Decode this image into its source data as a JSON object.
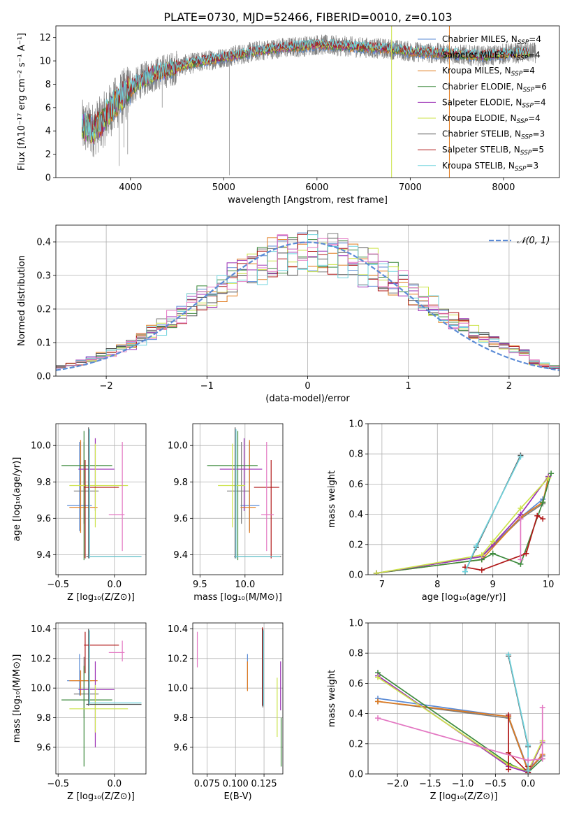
{
  "figure_title": "PLATE=0730, MJD=52466, FIBERID=0010, z=0.103",
  "colors": {
    "Chabrier MILES": "#5b8bd6",
    "Salpeter MILES": "#7d7d7d",
    "Kroupa MILES": "#e07b1f",
    "Chabrier ELODIE": "#3d8a3d",
    "Salpeter ELODIE": "#9b30b5",
    "Kroupa ELODIE": "#cce34a",
    "Chabrier STELIB": "#555555",
    "Salpeter STELIB": "#b01818",
    "Kroupa STELIB": "#6fd3dd",
    "Pink": "#e377c2",
    "Gauss": "#5b8bd6"
  },
  "legend": [
    {
      "label": "Chabrier MILES, N",
      "sub": "SSP",
      "tail": "=4",
      "key": "Chabrier MILES"
    },
    {
      "label": "Salpeter MILES, N",
      "sub": "SSP",
      "tail": "=4",
      "key": "Salpeter MILES"
    },
    {
      "label": "Kroupa MILES, N",
      "sub": "SSP",
      "tail": "=4",
      "key": "Kroupa MILES"
    },
    {
      "label": "Chabrier ELODIE, N",
      "sub": "SSP",
      "tail": "=6",
      "key": "Chabrier ELODIE"
    },
    {
      "label": "Salpeter ELODIE, N",
      "sub": "SSP",
      "tail": "=4",
      "key": "Salpeter ELODIE"
    },
    {
      "label": "Kroupa ELODIE, N",
      "sub": "SSP",
      "tail": "=4",
      "key": "Kroupa ELODIE"
    },
    {
      "label": "Chabrier STELIB, N",
      "sub": "SSP",
      "tail": "=3",
      "key": "Chabrier STELIB"
    },
    {
      "label": "Salpeter STELIB, N",
      "sub": "SSP",
      "tail": "=5",
      "key": "Salpeter STELIB"
    },
    {
      "label": "Kroupa STELIB, N",
      "sub": "SSP",
      "tail": "=3",
      "key": "Kroupa STELIB"
    }
  ],
  "chart_data": [
    {
      "id": "spectrum",
      "type": "line",
      "xlabel": "wavelength [Angstrom, rest frame]",
      "ylabel": "Flux [fλ10⁻¹⁷ erg cm⁻² s⁻¹ A⁻¹]",
      "xlim": [
        3200,
        8600
      ],
      "ylim": [
        0,
        13
      ],
      "xticks": [
        4000,
        5000,
        6000,
        7000,
        8000
      ],
      "yticks": [
        0,
        2,
        4,
        6,
        8,
        10,
        12
      ],
      "continuum": {
        "x": [
          3480,
          3600,
          3700,
          3800,
          3900,
          4000,
          4100,
          4200,
          4400,
          4600,
          4800,
          5000,
          5200,
          5400,
          5600,
          5800,
          6000,
          6200,
          6400,
          6600,
          6800,
          7000,
          7200,
          7400,
          7600,
          7800,
          8000,
          8200
        ],
        "y": [
          4.3,
          4.1,
          4.8,
          6.0,
          6.8,
          7.6,
          8.2,
          8.7,
          9.2,
          9.7,
          10.0,
          10.3,
          10.6,
          10.9,
          11.1,
          11.2,
          11.4,
          11.3,
          11.2,
          11.1,
          11.0,
          10.8,
          10.7,
          10.6,
          10.5,
          10.4,
          10.6,
          10.7
        ]
      },
      "xrange_data": [
        3480,
        8350
      ],
      "vertical_lines": [
        {
          "x": 6800,
          "color": "#cce34a"
        },
        {
          "x": 7420,
          "color": "#e07b1f"
        }
      ]
    },
    {
      "id": "residuals",
      "type": "line",
      "xlabel": "(data-model)/error",
      "ylabel": "Normed distribution",
      "xlim": [
        -2.5,
        2.5
      ],
      "ylim": [
        0,
        0.45
      ],
      "xticks": [
        -2,
        -1,
        0,
        1,
        2
      ],
      "yticks": [
        0.0,
        0.1,
        0.2,
        0.3,
        0.4
      ],
      "gauss_label": "𝒩(0, 1)",
      "bin_width": 0.1
    },
    {
      "id": "age_vs_Z",
      "type": "scatter",
      "xlabel": "Z [log₁₀(Z/Z⊙)]",
      "ylabel": "age  [log₁₀(age/yr)]",
      "xlim": [
        -0.52,
        0.28
      ],
      "ylim": [
        9.29,
        10.12
      ],
      "xticks": [
        -0.5,
        0.0
      ],
      "yticks": [
        9.4,
        9.6,
        9.8,
        10.0
      ],
      "points": [
        {
          "c": "Chabrier MILES",
          "x": -0.31,
          "y": 9.67,
          "xe": [
            -0.42,
            -0.2
          ],
          "ye": [
            9.53,
            10.02
          ]
        },
        {
          "c": "Salpeter MILES",
          "x": -0.27,
          "y": 9.75,
          "xe": [
            -0.36,
            -0.14
          ],
          "ye": [
            9.57,
            10.02
          ]
        },
        {
          "c": "Kroupa MILES",
          "x": -0.3,
          "y": 9.66,
          "xe": [
            -0.4,
            -0.15
          ],
          "ye": [
            9.52,
            10.03
          ]
        },
        {
          "c": "Chabrier ELODIE",
          "x": -0.27,
          "y": 9.89,
          "xe": [
            -0.47,
            -0.02
          ],
          "ye": [
            9.37,
            10.08
          ]
        },
        {
          "c": "Salpeter ELODIE",
          "x": -0.17,
          "y": 9.87,
          "xe": [
            -0.32,
            0.0
          ],
          "ye": [
            9.64,
            10.04
          ]
        },
        {
          "c": "Kroupa ELODIE",
          "x": -0.17,
          "y": 9.78,
          "xe": [
            -0.4,
            0.12
          ],
          "ye": [
            9.55,
            10.01
          ]
        },
        {
          "c": "Chabrier STELIB",
          "x": -0.23,
          "y": 9.39,
          "xe": [
            -0.25,
            0.24
          ],
          "ye": [
            9.38,
            10.1
          ]
        },
        {
          "c": "Salpeter STELIB",
          "x": -0.26,
          "y": 9.77,
          "xe": [
            -0.27,
            0.04
          ],
          "ye": [
            9.38,
            9.92
          ]
        },
        {
          "c": "Kroupa STELIB",
          "x": -0.22,
          "y": 9.39,
          "xe": [
            -0.23,
            0.24
          ],
          "ye": [
            9.38,
            10.09
          ]
        },
        {
          "c": "Pink",
          "x": 0.07,
          "y": 9.62,
          "xe": [
            -0.05,
            0.09
          ],
          "ye": [
            9.42,
            10.02
          ]
        }
      ]
    },
    {
      "id": "age_vs_mass",
      "type": "scatter",
      "xlabel": "mass [log₁₀(M/M⊙)]",
      "ylabel": "",
      "xlim": [
        9.42,
        10.42
      ],
      "ylim": [
        9.29,
        10.12
      ],
      "xticks": [
        9.5,
        10.0
      ],
      "yticks": [
        9.4,
        9.6,
        9.8,
        10.0
      ],
      "points": [
        {
          "c": "Chabrier MILES",
          "x": 10.05,
          "y": 9.67,
          "xe": [
            9.95,
            10.16
          ],
          "ye": [
            9.53,
            10.02
          ]
        },
        {
          "c": "Salpeter MILES",
          "x": 9.96,
          "y": 9.75,
          "xe": [
            9.8,
            10.05
          ],
          "ye": [
            9.57,
            10.02
          ]
        },
        {
          "c": "Kroupa MILES",
          "x": 10.05,
          "y": 9.66,
          "xe": [
            9.95,
            10.12
          ],
          "ye": [
            9.52,
            10.03
          ]
        },
        {
          "c": "Chabrier ELODIE",
          "x": 9.92,
          "y": 9.89,
          "xe": [
            9.58,
            10.14
          ],
          "ye": [
            9.37,
            10.08
          ]
        },
        {
          "c": "Salpeter ELODIE",
          "x": 9.99,
          "y": 9.87,
          "xe": [
            9.72,
            10.19
          ],
          "ye": [
            9.64,
            10.04
          ]
        },
        {
          "c": "Kroupa ELODIE",
          "x": 9.86,
          "y": 9.78,
          "xe": [
            9.7,
            10.0
          ],
          "ye": [
            9.55,
            10.01
          ]
        },
        {
          "c": "Chabrier STELIB",
          "x": 9.89,
          "y": 9.39,
          "xe": [
            9.88,
            10.4
          ],
          "ye": [
            9.38,
            10.1
          ]
        },
        {
          "c": "Salpeter STELIB",
          "x": 10.29,
          "y": 9.77,
          "xe": [
            10.1,
            10.38
          ],
          "ye": [
            9.38,
            9.92
          ]
        },
        {
          "c": "Kroupa STELIB",
          "x": 9.9,
          "y": 9.39,
          "xe": [
            9.89,
            10.39
          ],
          "ye": [
            9.38,
            10.09
          ]
        },
        {
          "c": "Pink",
          "x": 10.24,
          "y": 9.62,
          "xe": [
            10.18,
            10.32
          ],
          "ye": [
            9.42,
            10.02
          ]
        }
      ]
    },
    {
      "id": "mw_vs_age",
      "type": "line",
      "xlabel": "age  [log₁₀(age/yr)]",
      "ylabel": "mass weight",
      "xlim": [
        6.75,
        10.2
      ],
      "ylim": [
        0,
        1.0
      ],
      "xticks": [
        7,
        8,
        9,
        10
      ],
      "yticks": [
        0.0,
        0.2,
        0.4,
        0.6,
        0.8,
        1.0
      ],
      "series": [
        {
          "c": "Chabrier MILES",
          "x": [
            6.9,
            8.8,
            9.5,
            9.9
          ],
          "y": [
            0.01,
            0.12,
            0.38,
            0.5
          ]
        },
        {
          "c": "Salpeter MILES",
          "x": [
            6.9,
            8.8,
            9.5,
            9.9,
            10.0
          ],
          "y": [
            0.01,
            0.12,
            0.37,
            0.47,
            0.65
          ]
        },
        {
          "c": "Kroupa MILES",
          "x": [
            6.9,
            8.8,
            9.5,
            9.9,
            10.0
          ],
          "y": [
            0.01,
            0.1,
            0.38,
            0.48,
            0.64
          ]
        },
        {
          "c": "Chabrier ELODIE",
          "x": [
            6.9,
            8.8,
            9.0,
            9.5,
            9.9,
            10.05
          ],
          "y": [
            0.01,
            0.1,
            0.14,
            0.07,
            0.48,
            0.67
          ]
        },
        {
          "c": "Salpeter ELODIE",
          "x": [
            6.9,
            8.8,
            9.0,
            9.5,
            10.0
          ],
          "y": [
            0.01,
            0.12,
            0.2,
            0.4,
            0.65
          ]
        },
        {
          "c": "Kroupa ELODIE",
          "x": [
            6.9,
            8.8,
            9.0,
            9.5,
            10.0
          ],
          "y": [
            0.01,
            0.13,
            0.22,
            0.44,
            0.64
          ]
        },
        {
          "c": "Chabrier STELIB",
          "x": [
            8.5,
            8.7,
            9.5
          ],
          "y": [
            0.02,
            0.18,
            0.79
          ]
        },
        {
          "c": "Salpeter STELIB",
          "x": [
            8.5,
            8.8,
            9.6,
            9.8,
            9.9
          ],
          "y": [
            0.05,
            0.03,
            0.14,
            0.39,
            0.37
          ]
        },
        {
          "c": "Kroupa STELIB",
          "x": [
            8.5,
            8.7,
            9.5
          ],
          "y": [
            0.02,
            0.19,
            0.78
          ]
        },
        {
          "c": "Pink",
          "x": [
            9.5,
            9.5
          ],
          "y": [
            0.1,
            0.37
          ]
        }
      ]
    },
    {
      "id": "mass_vs_Z",
      "type": "scatter",
      "xlabel": "Z [log₁₀(Z/Z⊙)]",
      "ylabel": "mass [log₁₀(M/M⊙)]",
      "xlim": [
        -0.52,
        0.28
      ],
      "ylim": [
        9.42,
        10.44
      ],
      "xticks": [
        -0.5,
        0.0
      ],
      "yticks": [
        9.6,
        9.8,
        10.0,
        10.2,
        10.4
      ],
      "points": [
        {
          "c": "Chabrier MILES",
          "x": -0.31,
          "y": 10.05,
          "xe": [
            -0.42,
            -0.2
          ],
          "ye": [
            9.95,
            10.23
          ]
        },
        {
          "c": "Salpeter MILES",
          "x": -0.27,
          "y": 9.96,
          "xe": [
            -0.36,
            -0.14
          ],
          "ye": [
            9.8,
            10.21
          ]
        },
        {
          "c": "Kroupa MILES",
          "x": -0.3,
          "y": 10.05,
          "xe": [
            -0.4,
            -0.15
          ],
          "ye": [
            9.95,
            10.12
          ]
        },
        {
          "c": "Chabrier ELODIE",
          "x": -0.27,
          "y": 9.92,
          "xe": [
            -0.47,
            -0.02
          ],
          "ye": [
            9.47,
            10.15
          ]
        },
        {
          "c": "Salpeter ELODIE",
          "x": -0.17,
          "y": 9.99,
          "xe": [
            -0.32,
            0.0
          ],
          "ye": [
            9.6,
            10.18
          ]
        },
        {
          "c": "Kroupa ELODIE",
          "x": -0.17,
          "y": 9.86,
          "xe": [
            -0.4,
            0.12
          ],
          "ye": [
            9.7,
            10.02
          ]
        },
        {
          "c": "Chabrier STELIB",
          "x": -0.23,
          "y": 9.89,
          "xe": [
            -0.25,
            0.24
          ],
          "ye": [
            9.88,
            10.4
          ]
        },
        {
          "c": "Salpeter STELIB",
          "x": -0.26,
          "y": 10.29,
          "xe": [
            -0.27,
            0.04
          ],
          "ye": [
            10.1,
            10.38
          ]
        },
        {
          "c": "Kroupa STELIB",
          "x": -0.22,
          "y": 9.9,
          "xe": [
            -0.23,
            0.24
          ],
          "ye": [
            9.89,
            10.39
          ]
        },
        {
          "c": "Pink",
          "x": 0.07,
          "y": 10.24,
          "xe": [
            -0.05,
            0.09
          ],
          "ye": [
            10.18,
            10.32
          ]
        }
      ]
    },
    {
      "id": "mass_vs_ebv",
      "type": "scatter",
      "xlabel": "E(B-V)",
      "ylabel": "",
      "xlim": [
        0.0625,
        0.1415
      ],
      "ylim": [
        9.42,
        10.44
      ],
      "xticks": [
        0.075,
        0.1,
        0.125
      ],
      "xticklabels": [
        "0.075",
        "0.100",
        "0.125"
      ],
      "yticks": [
        9.6,
        9.8,
        10.0,
        10.2,
        10.4
      ],
      "points": [
        {
          "c": "Pink",
          "x": 0.0665,
          "ye": [
            10.14,
            10.38
          ]
        },
        {
          "c": "Chabrier MILES",
          "x": 0.1105,
          "ye": [
            9.99,
            10.23
          ]
        },
        {
          "c": "Kroupa MILES",
          "x": 0.1105,
          "ye": [
            9.98,
            10.18
          ]
        },
        {
          "c": "Salpeter STELIB",
          "x": 0.1235,
          "ye": [
            9.88,
            10.41
          ]
        },
        {
          "c": "Chabrier STELIB",
          "x": 0.124,
          "ye": [
            9.87,
            10.4
          ]
        },
        {
          "c": "Kroupa STELIB",
          "x": 0.1245,
          "ye": [
            9.88,
            10.39
          ]
        },
        {
          "c": "Kroupa ELODIE",
          "x": 0.1365,
          "ye": [
            9.67,
            10.07
          ]
        },
        {
          "c": "Salpeter ELODIE",
          "x": 0.1395,
          "ye": [
            9.85,
            10.18
          ]
        },
        {
          "c": "Chabrier ELODIE",
          "x": 0.14,
          "ye": [
            9.47,
            9.8
          ]
        }
      ]
    },
    {
      "id": "mw_vs_Z",
      "type": "line",
      "xlabel": "Z [log₁₀(Z/Z⊙)]",
      "ylabel": "mass weight",
      "xlim": [
        -2.45,
        0.48
      ],
      "ylim": [
        0,
        1.0
      ],
      "xticks": [
        -2.0,
        -1.5,
        -1.0,
        -0.5,
        0.0
      ],
      "xticklabels": [
        "−2.0",
        "−1.5",
        "−1.0",
        "−0.5",
        "0.0"
      ],
      "yticks": [
        0.0,
        0.2,
        0.4,
        0.6,
        0.8,
        1.0
      ],
      "series": [
        {
          "c": "Chabrier MILES",
          "x": [
            -2.3,
            -0.3,
            0.0,
            0.22
          ],
          "y": [
            0.5,
            0.38,
            0.03,
            0.12
          ]
        },
        {
          "c": "Salpeter MILES",
          "x": [
            -2.3,
            -0.3,
            0.0,
            0.22
          ],
          "y": [
            0.48,
            0.37,
            0.02,
            0.12
          ]
        },
        {
          "c": "Kroupa MILES",
          "x": [
            -2.3,
            -0.3,
            0.0,
            0.22
          ],
          "y": [
            0.48,
            0.38,
            0.02,
            0.13
          ]
        },
        {
          "c": "Chabrier ELODIE",
          "x": [
            -2.3,
            -0.3,
            0.0,
            0.22
          ],
          "y": [
            0.67,
            0.07,
            0.01,
            0.1
          ]
        },
        {
          "c": "Salpeter ELODIE",
          "x": [
            -2.3,
            -0.3,
            0.0,
            0.22
          ],
          "y": [
            0.65,
            0.05,
            0.01,
            0.21
          ]
        },
        {
          "c": "Kroupa ELODIE",
          "x": [
            -2.3,
            -0.3,
            0.0,
            0.22
          ],
          "y": [
            0.64,
            0.06,
            0.02,
            0.22
          ]
        },
        {
          "c": "Chabrier STELIB",
          "x": [
            -0.3,
            0.0
          ],
          "y": [
            0.78,
            0.18
          ]
        },
        {
          "c": "Salpeter STELIB",
          "x": [
            -0.3,
            -0.3,
            -0.3,
            0.0,
            0.0
          ],
          "y": [
            0.03,
            0.39,
            0.14,
            0.01,
            0.05
          ]
        },
        {
          "c": "Kroupa STELIB",
          "x": [
            -0.3,
            0.0,
            0.0
          ],
          "y": [
            0.79,
            0.19,
            0.02
          ]
        },
        {
          "c": "Pink",
          "x": [
            -2.3,
            0.0,
            0.22,
            0.22
          ],
          "y": [
            0.37,
            0.09,
            0.1,
            0.44
          ]
        }
      ]
    }
  ]
}
